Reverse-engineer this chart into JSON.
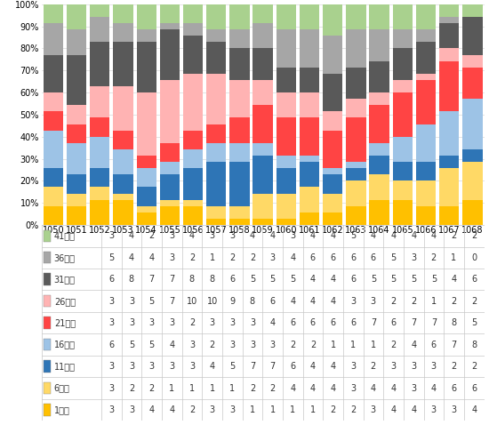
{
  "categories": [
    "1050",
    "1051",
    "1052",
    "1053",
    "1054",
    "1055",
    "1056",
    "1057",
    "1058",
    "1059",
    "1060",
    "1061",
    "1062",
    "1063",
    "1064",
    "1065",
    "1066",
    "1067",
    "1068"
  ],
  "series_bottom_to_top": [
    {
      "label": "1번대",
      "color": "#ffc000",
      "values": [
        3,
        3,
        4,
        4,
        2,
        3,
        3,
        1,
        1,
        1,
        1,
        2,
        2,
        3,
        4,
        4,
        3,
        3,
        4
      ]
    },
    {
      "label": "6번대",
      "color": "#ffd966",
      "values": [
        3,
        2,
        2,
        1,
        1,
        1,
        1,
        2,
        2,
        4,
        4,
        4,
        3,
        4,
        4,
        3,
        4,
        6,
        6
      ]
    },
    {
      "label": "11번대",
      "color": "#2e75b6",
      "values": [
        3,
        3,
        3,
        3,
        3,
        4,
        5,
        7,
        7,
        6,
        4,
        4,
        3,
        2,
        3,
        3,
        3,
        2,
        2
      ]
    },
    {
      "label": "16번대",
      "color": "#9dc3e6",
      "values": [
        6,
        5,
        5,
        4,
        3,
        2,
        3,
        3,
        3,
        2,
        2,
        1,
        1,
        1,
        2,
        4,
        6,
        7,
        8
      ]
    },
    {
      "label": "21번대",
      "color": "#ff4444",
      "values": [
        3,
        3,
        3,
        3,
        2,
        3,
        3,
        3,
        4,
        6,
        6,
        6,
        6,
        7,
        6,
        7,
        7,
        8,
        5
      ]
    },
    {
      "label": "26번대",
      "color": "#ffb3b3",
      "values": [
        3,
        3,
        5,
        7,
        10,
        10,
        9,
        8,
        6,
        4,
        4,
        4,
        3,
        3,
        2,
        2,
        1,
        2,
        2
      ]
    },
    {
      "label": "31번대",
      "color": "#595959",
      "values": [
        6,
        8,
        7,
        7,
        8,
        8,
        6,
        5,
        5,
        5,
        4,
        4,
        6,
        5,
        5,
        5,
        5,
        4,
        6
      ]
    },
    {
      "label": "36번대",
      "color": "#a6a6a6",
      "values": [
        5,
        4,
        4,
        3,
        2,
        1,
        2,
        2,
        3,
        4,
        6,
        6,
        6,
        6,
        5,
        3,
        2,
        1,
        0
      ]
    },
    {
      "label": "41번대",
      "color": "#a9d18e",
      "values": [
        3,
        4,
        2,
        3,
        4,
        3,
        3,
        4,
        4,
        3,
        4,
        4,
        5,
        4,
        4,
        4,
        4,
        2,
        2
      ]
    }
  ],
  "series_top_to_bottom_for_table": [
    {
      "label": "41번대",
      "color": "#a9d18e",
      "values": [
        3,
        4,
        2,
        3,
        4,
        3,
        3,
        4,
        4,
        3,
        4,
        4,
        5,
        4,
        4,
        4,
        4,
        2,
        2
      ]
    },
    {
      "label": "36번대",
      "color": "#a6a6a6",
      "values": [
        5,
        4,
        4,
        3,
        2,
        1,
        2,
        2,
        3,
        4,
        6,
        6,
        6,
        6,
        5,
        3,
        2,
        1,
        0
      ]
    },
    {
      "label": "31번대",
      "color": "#595959",
      "values": [
        6,
        8,
        7,
        7,
        8,
        8,
        6,
        5,
        5,
        5,
        4,
        4,
        6,
        5,
        5,
        5,
        5,
        4,
        6
      ]
    },
    {
      "label": "26번대",
      "color": "#ffb3b3",
      "values": [
        3,
        3,
        5,
        7,
        10,
        10,
        9,
        8,
        6,
        4,
        4,
        4,
        3,
        3,
        2,
        2,
        1,
        2,
        2
      ]
    },
    {
      "label": "21번대",
      "color": "#ff4444",
      "values": [
        3,
        3,
        3,
        3,
        2,
        3,
        3,
        3,
        4,
        6,
        6,
        6,
        6,
        7,
        6,
        7,
        7,
        8,
        5
      ]
    },
    {
      "label": "16번대",
      "color": "#9dc3e6",
      "values": [
        6,
        5,
        5,
        4,
        3,
        2,
        3,
        3,
        3,
        2,
        2,
        1,
        1,
        1,
        2,
        4,
        6,
        7,
        8
      ]
    },
    {
      "label": "11번대",
      "color": "#2e75b6",
      "values": [
        3,
        3,
        3,
        3,
        3,
        4,
        5,
        7,
        7,
        6,
        4,
        4,
        3,
        2,
        3,
        3,
        3,
        2,
        2
      ]
    },
    {
      "label": "6번대",
      "color": "#ffd966",
      "values": [
        3,
        2,
        2,
        1,
        1,
        1,
        1,
        2,
        2,
        4,
        4,
        4,
        3,
        4,
        4,
        3,
        4,
        6,
        6
      ]
    },
    {
      "label": "1번대",
      "color": "#ffc000",
      "values": [
        3,
        3,
        4,
        4,
        2,
        3,
        3,
        1,
        1,
        1,
        1,
        2,
        2,
        3,
        4,
        4,
        3,
        3,
        4
      ]
    }
  ],
  "background_color": "#ffffff",
  "grid_color": "#d9d9d9",
  "border_color": "#c8c8c8",
  "font_size_tick": 7,
  "font_size_table": 7,
  "bar_width": 0.85
}
